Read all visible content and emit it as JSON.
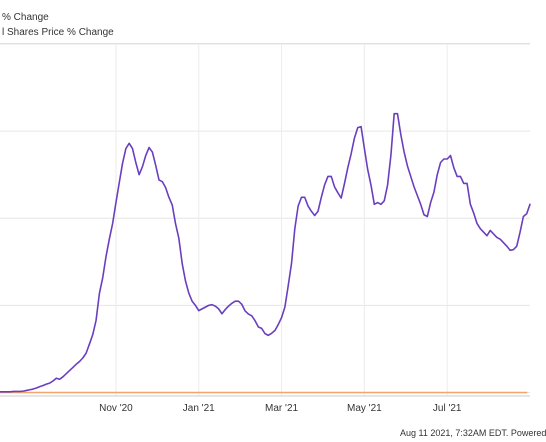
{
  "chart_data": {
    "type": "line",
    "legend": [
      "% Change",
      "l Shares Price % Change"
    ],
    "legend_placement": "top-left",
    "x_tick_labels": [
      "Nov '20",
      "Jan '21",
      "Mar '21",
      "May '21",
      "Jul '21"
    ],
    "grid": true,
    "series": [
      {
        "name": "% Change",
        "color": "#6a3fbf",
        "values": [
          2,
          2,
          2,
          2,
          3,
          3,
          3,
          4,
          6,
          8,
          10,
          13,
          17,
          20,
          24,
          27,
          33,
          41,
          38,
          45,
          54,
          63,
          72,
          81,
          89,
          99,
          113,
          139,
          166,
          207,
          284,
          329,
          390,
          440,
          485,
          545,
          602,
          658,
          700,
          715,
          700,
          660,
          625,
          648,
          680,
          703,
          690,
          652,
          610,
          605,
          588,
          560,
          538,
          484,
          442,
          370,
          320,
          285,
          262,
          250,
          235,
          240,
          245,
          250,
          252,
          248,
          240,
          226,
          238,
          248,
          256,
          262,
          262,
          253,
          234,
          225,
          220,
          206,
          188,
          184,
          169,
          164,
          170,
          178,
          195,
          215,
          245,
          306,
          370,
          470,
          535,
          560,
          560,
          535,
          520,
          508,
          520,
          560,
          596,
          620,
          620,
          590,
          573,
          558,
          600,
          645,
          685,
          730,
          760,
          763,
          700,
          640,
          595,
          540,
          545,
          540,
          550,
          595,
          680,
          800,
          800,
          740,
          690,
          650,
          620,
          590,
          565,
          540,
          510,
          505,
          545,
          575,
          625,
          660,
          670,
          670,
          680,
          645,
          620,
          620,
          600,
          600,
          540,
          515,
          485,
          470,
          460,
          450,
          465,
          455,
          445,
          440,
          430,
          420,
          408,
          410,
          420,
          460,
          505,
          513,
          540
        ]
      },
      {
        "name": "l Shares Price % Change",
        "color": "#f5a36c",
        "values": [
          0,
          0,
          0,
          0,
          0,
          0,
          0,
          0,
          0,
          0,
          0,
          0,
          0,
          0,
          0,
          0,
          0,
          0,
          0,
          0,
          0,
          0,
          0,
          0,
          0,
          0,
          0,
          0,
          0,
          0,
          0,
          0,
          0,
          0,
          0,
          0,
          0,
          0,
          0,
          0,
          0,
          0,
          0,
          0,
          0,
          0,
          0,
          0,
          0,
          0,
          0,
          0,
          0,
          0,
          0,
          0,
          0,
          0,
          0,
          0,
          0,
          0,
          0,
          0,
          0,
          0,
          0,
          0,
          0,
          0,
          0,
          0,
          0,
          0,
          0,
          0,
          0,
          0,
          0,
          0,
          0,
          0,
          0,
          0,
          0,
          0,
          0,
          0,
          0,
          0,
          0,
          0,
          0,
          0,
          0,
          0,
          0,
          0,
          0,
          0,
          0,
          0,
          0,
          0,
          0,
          0,
          0,
          0,
          0,
          0,
          0,
          0,
          0,
          0,
          0,
          0,
          0,
          0,
          0,
          0,
          0,
          0,
          0,
          0,
          0,
          0,
          0,
          0,
          0,
          0,
          0,
          0,
          0,
          0,
          0,
          0,
          0,
          0,
          0,
          0,
          0,
          0,
          0,
          0,
          0,
          0,
          0,
          0,
          0,
          0,
          0,
          0,
          0,
          0,
          0,
          0,
          0,
          0,
          0,
          0
        ]
      }
    ],
    "x_ticks_at": [
      35,
      60,
      85,
      110,
      135
    ],
    "ylim": [
      -10,
      1000
    ]
  },
  "footer_text": "Aug 11 2021, 7:32AM EDT. Powered"
}
